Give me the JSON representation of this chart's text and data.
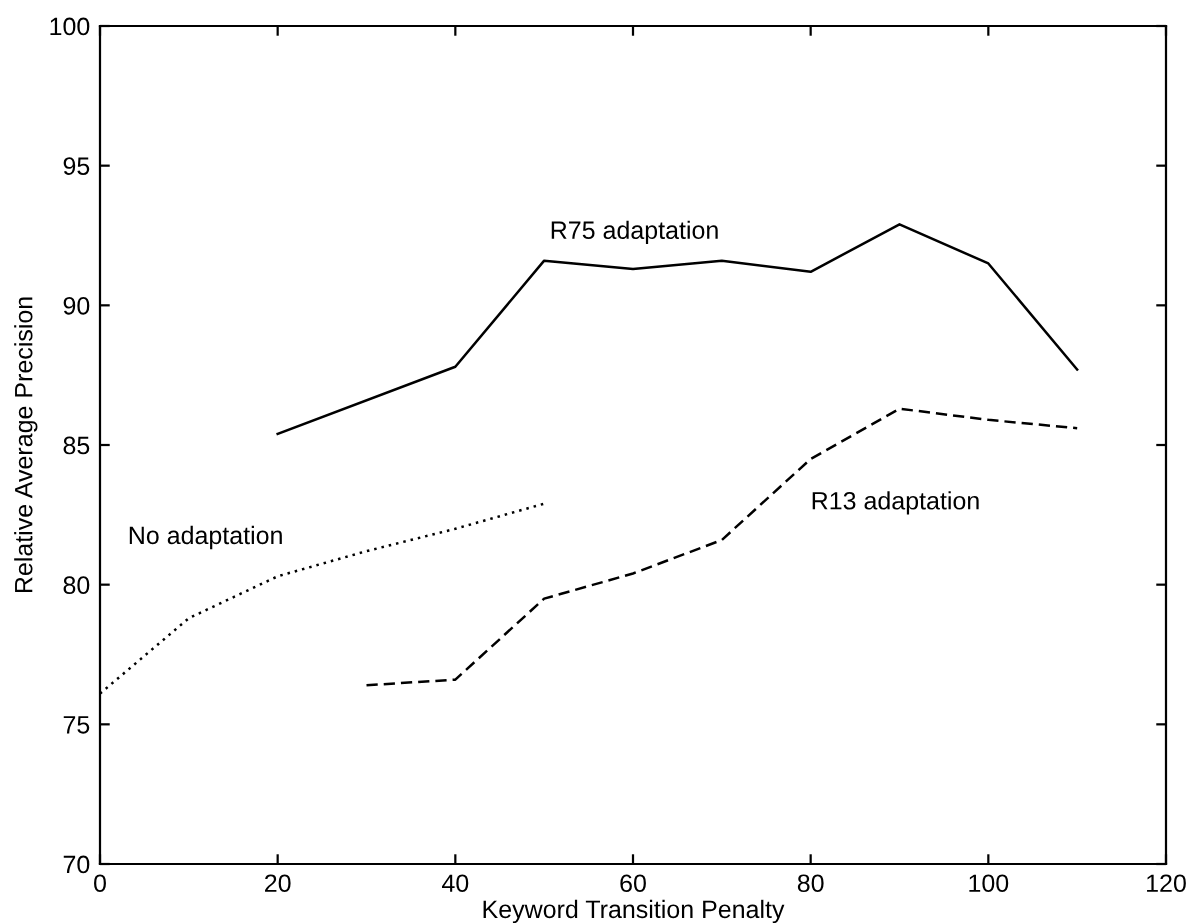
{
  "chart_data": {
    "type": "line",
    "xlabel": "Keyword Transition Penalty",
    "ylabel": "Relative Average Precision",
    "xlim": [
      0,
      120
    ],
    "xticks": [
      0,
      20,
      40,
      60,
      80,
      100,
      120
    ],
    "ylim": [
      70,
      100
    ],
    "yticks": [
      70,
      75,
      80,
      85,
      90,
      95,
      100
    ],
    "grid": false,
    "marker": "none",
    "series": [
      {
        "name": "R75 adaptation",
        "color": "#000000",
        "line_style": "solid",
        "x": [
          20,
          40,
          50,
          60,
          70,
          80,
          90,
          100,
          110
        ],
        "values": [
          85.4,
          87.8,
          91.6,
          91.3,
          91.6,
          91.2,
          92.9,
          91.5,
          87.7
        ]
      },
      {
        "name": "R13 adaptation",
        "color": "#000000",
        "line_style": "dashed",
        "x": [
          30,
          40,
          50,
          60,
          70,
          80,
          90,
          100,
          110
        ],
        "values": [
          76.4,
          76.6,
          79.5,
          80.4,
          81.6,
          84.5,
          86.3,
          85.9,
          85.6
        ]
      },
      {
        "name": "No adaptation",
        "color": "#000000",
        "line_style": "dotted",
        "x": [
          0,
          10,
          20,
          30,
          40,
          50
        ],
        "values": [
          76.1,
          78.8,
          80.3,
          81.2,
          82.0,
          82.9
        ]
      }
    ]
  }
}
